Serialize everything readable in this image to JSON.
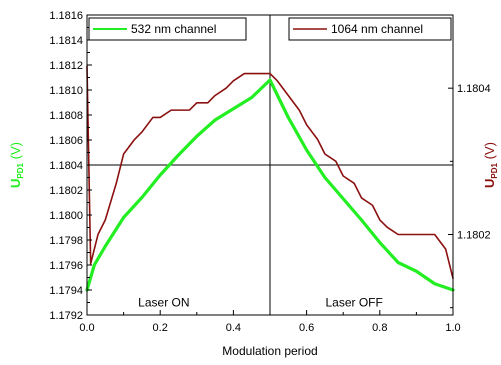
{
  "chart_data": {
    "type": "line",
    "xlabel": "Modulation period",
    "xlim": [
      0.0,
      1.0
    ],
    "x_ticks": [
      "0.0",
      "0.2",
      "0.4",
      "0.6",
      "0.8",
      "1.0"
    ],
    "left_axis": {
      "label_main": "U",
      "label_sub": "PD1",
      "label_unit": " (V)",
      "ylim": [
        1.1792,
        1.1816
      ],
      "ticks": [
        "1.1792",
        "1.1794",
        "1.1796",
        "1.1798",
        "1.1800",
        "1.1802",
        "1.1804",
        "1.1806",
        "1.1808",
        "1.1810",
        "1.1812",
        "1.1814",
        "1.1816"
      ],
      "color": "#22ee22"
    },
    "right_axis": {
      "label_main": "U",
      "label_sub": "PD1",
      "label_unit": " (V)",
      "ylim": [
        1.18009,
        1.1805
      ],
      "ticks": [
        "1.1802",
        "1.1804"
      ],
      "color": "#8b1010"
    },
    "reference_lines": {
      "vertical_x": 0.5,
      "horizontal_y_left": 1.1804
    },
    "annotations": [
      {
        "text": "Laser ON",
        "x": 0.21,
        "y": 1.17927
      },
      {
        "text": "Laser OFF",
        "x": 0.73,
        "y": 1.17927
      }
    ],
    "legend_position": "top",
    "series": [
      {
        "name": "532 nm channel",
        "axis": "left",
        "color": "#22ee22",
        "x": [
          0.0,
          0.02,
          0.05,
          0.1,
          0.15,
          0.2,
          0.25,
          0.3,
          0.35,
          0.4,
          0.45,
          0.5,
          0.55,
          0.6,
          0.65,
          0.7,
          0.75,
          0.8,
          0.85,
          0.9,
          0.95,
          1.0
        ],
        "y": [
          1.1794,
          1.1796,
          1.17975,
          1.17998,
          1.18014,
          1.18032,
          1.18048,
          1.18063,
          1.18076,
          1.18085,
          1.18094,
          1.18108,
          1.18078,
          1.18052,
          1.1803,
          1.18013,
          1.17996,
          1.17978,
          1.17962,
          1.17955,
          1.17945,
          1.1794
        ]
      },
      {
        "name": "1064 nm channel",
        "axis": "right",
        "color": "#8b1010",
        "x": [
          0.0,
          0.01,
          0.03,
          0.05,
          0.08,
          0.1,
          0.13,
          0.15,
          0.18,
          0.2,
          0.23,
          0.25,
          0.28,
          0.3,
          0.33,
          0.35,
          0.38,
          0.4,
          0.43,
          0.45,
          0.47,
          0.49,
          0.5,
          0.52,
          0.55,
          0.58,
          0.6,
          0.63,
          0.65,
          0.68,
          0.7,
          0.73,
          0.75,
          0.78,
          0.8,
          0.82,
          0.85,
          0.88,
          0.9,
          0.93,
          0.95,
          0.98,
          1.0
        ],
        "y": [
          1.18043,
          1.18016,
          1.1802,
          1.18022,
          1.18027,
          1.18031,
          1.18033,
          1.18034,
          1.18036,
          1.18036,
          1.18037,
          1.18037,
          1.18037,
          1.18038,
          1.18038,
          1.18039,
          1.1804,
          1.18041,
          1.18042,
          1.18042,
          1.18042,
          1.18042,
          1.18042,
          1.18041,
          1.18039,
          1.18037,
          1.18035,
          1.18033,
          1.18031,
          1.1803,
          1.18028,
          1.18027,
          1.18025,
          1.18024,
          1.18022,
          1.18021,
          1.1802,
          1.1802,
          1.1802,
          1.1802,
          1.1802,
          1.18018,
          1.18014
        ]
      }
    ]
  }
}
